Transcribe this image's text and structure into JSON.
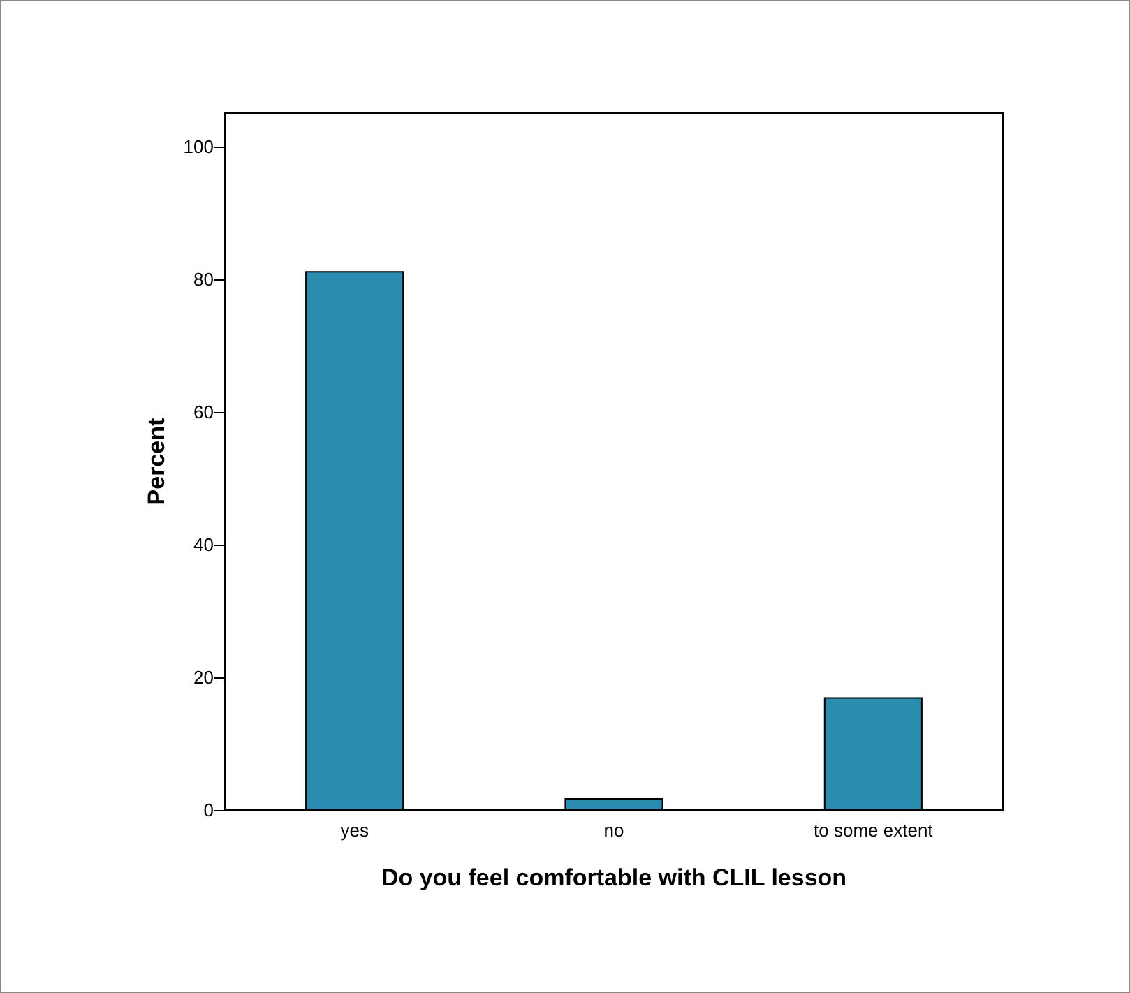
{
  "chart_data": {
    "type": "bar",
    "xlabel": "Do you feel comfortable with CLIL lesson",
    "ylabel": "Percent",
    "categories": [
      "yes",
      "no",
      "to some extent"
    ],
    "values": [
      81.2,
      1.8,
      17
    ],
    "color": "#2a8db0",
    "ylim": [
      0,
      105
    ],
    "yticks": [
      0,
      20,
      40,
      60,
      80,
      100
    ],
    "grid": false
  }
}
